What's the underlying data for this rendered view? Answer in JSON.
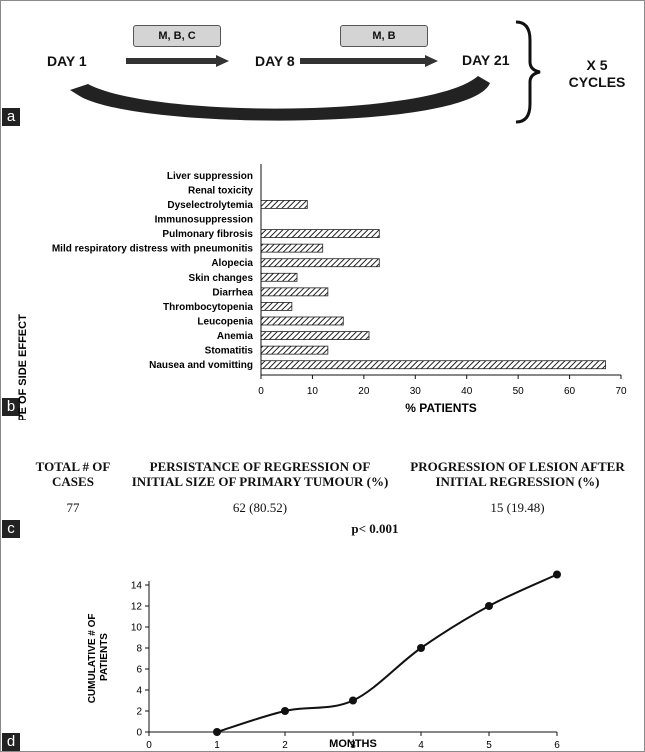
{
  "panel_labels": [
    "a",
    "b",
    "c",
    "d"
  ],
  "schedule": {
    "day1": "DAY 1",
    "day8": "DAY 8",
    "day21": "DAY 21",
    "drugs_1": "M, B, C",
    "drugs_2": "M, B",
    "cycles_line1": "X 5",
    "cycles_line2": "CYCLES"
  },
  "table": {
    "headers": [
      [
        "TOTAL # OF",
        "CASES"
      ],
      [
        "PERSISTANCE OF REGRESSION OF",
        "INITIAL SIZE OF PRIMARY TUMOUR (%)"
      ],
      [
        "PROGRESSION OF LESION AFTER",
        "INITIAL REGRESSION (%)"
      ]
    ],
    "values": [
      "77",
      "62 (80.52)",
      "15 (19.48)"
    ],
    "p_value": "p< 0.001"
  },
  "chart_data": [
    {
      "type": "bar",
      "orientation": "horizontal",
      "categories": [
        "Liver suppression",
        "Renal toxicity",
        "Dyselectrolytemia",
        "Immunosuppression",
        "Pulmonary fibrosis",
        "Mild respiratory distress with pneumonitis",
        "Alopecia",
        "Skin changes",
        "Diarrhea",
        "Thrombocytopenia",
        "Leucopenia",
        "Anemia",
        "Stomatitis",
        "Nausea and vomitting"
      ],
      "values": [
        0,
        0,
        9,
        0,
        23,
        12,
        23,
        7,
        13,
        6,
        16,
        21,
        13,
        67
      ],
      "xlabel": "% PATIENTS",
      "ylabel": "TYPE OF SIDE EFFECT",
      "xlim": [
        0,
        70
      ],
      "xticks": [
        0,
        10,
        20,
        30,
        40,
        50,
        60,
        70
      ],
      "grid": false
    },
    {
      "type": "line",
      "x": [
        1,
        2,
        3,
        4,
        5,
        6
      ],
      "y": [
        0,
        2,
        3,
        8,
        12,
        15
      ],
      "xlabel": "MONTHS",
      "ylabel": "CUMULATIVE # OF PATIENTS",
      "xlim": [
        0,
        6
      ],
      "ylim": [
        0,
        14
      ],
      "xticks": [
        0,
        1,
        2,
        3,
        4,
        5,
        6
      ],
      "yticks": [
        0,
        2,
        4,
        6,
        8,
        10,
        12,
        14
      ],
      "grid": false
    }
  ]
}
